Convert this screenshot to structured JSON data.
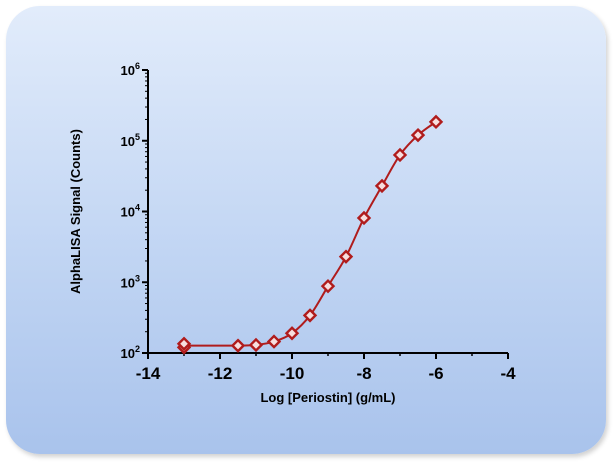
{
  "chart_data": {
    "type": "line",
    "title": "",
    "xlabel": "Log [Periostin] (g/mL)",
    "ylabel": "AlphaLISA Signal (Counts)",
    "xlim": [
      -14,
      -4
    ],
    "ylim": [
      100,
      1000000
    ],
    "yscale": "log",
    "x_ticks": [
      "-14",
      "-12",
      "-10",
      "-8",
      "-6",
      "-4"
    ],
    "y_ticks": [
      {
        "base": "10",
        "exp": "2"
      },
      {
        "base": "10",
        "exp": "3"
      },
      {
        "base": "10",
        "exp": "4"
      },
      {
        "base": "10",
        "exp": "5"
      },
      {
        "base": "10",
        "exp": "6"
      }
    ],
    "grid": false,
    "series": [
      {
        "points": [
          {
            "x": -13,
            "y": 120
          },
          {
            "x": -13,
            "y": 135
          },
          {
            "x": -11.5,
            "y": 127
          },
          {
            "x": -11,
            "y": 130
          },
          {
            "x": -10.5,
            "y": 145
          },
          {
            "x": -10,
            "y": 190
          },
          {
            "x": -9.5,
            "y": 340
          },
          {
            "x": -9,
            "y": 880
          },
          {
            "x": -8.5,
            "y": 2300
          },
          {
            "x": -8,
            "y": 8100
          },
          {
            "x": -7.5,
            "y": 23000
          },
          {
            "x": -7,
            "y": 63000
          },
          {
            "x": -6.5,
            "y": 120000
          },
          {
            "x": -6,
            "y": 185000
          }
        ],
        "color": "#b01c1c"
      }
    ]
  }
}
